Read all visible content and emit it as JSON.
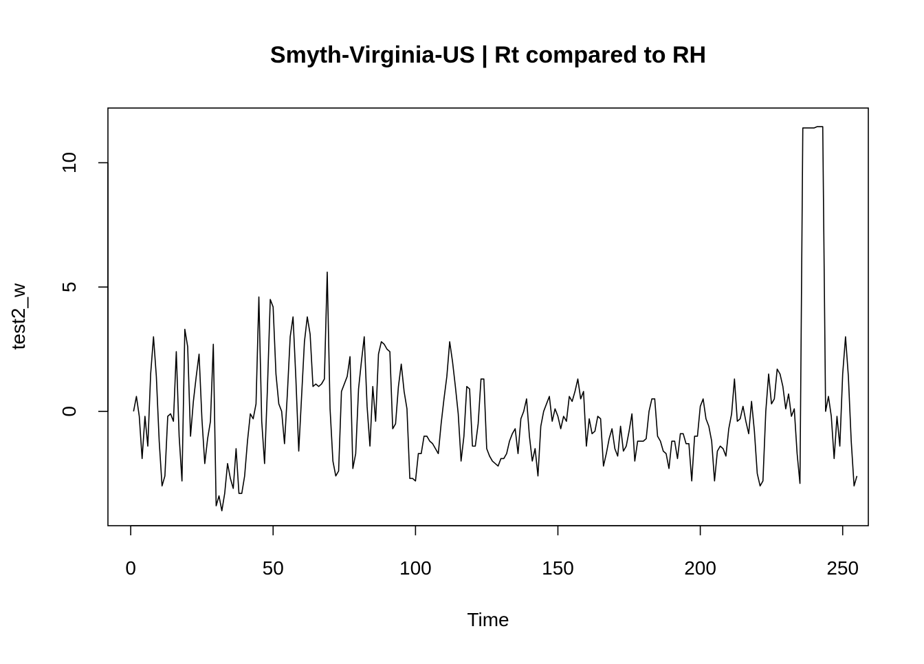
{
  "chart_data": {
    "type": "line",
    "title": "Smyth-Virginia-US | Rt compared to RH",
    "xlabel": "Time",
    "ylabel": "test2_w",
    "xlim": [
      -8,
      259
    ],
    "ylim": [
      -4.6,
      12.2
    ],
    "x_ticks": [
      0,
      50,
      100,
      150,
      200,
      250
    ],
    "y_ticks": [
      0,
      5,
      10
    ],
    "grid": false,
    "legend": "none",
    "line_color": "#000000",
    "series": [
      {
        "x_start": 1,
        "values": [
          0.0,
          0.6,
          -0.2,
          -1.9,
          -0.2,
          -1.4,
          1.5,
          3.0,
          1.4,
          -1.2,
          -3.0,
          -2.6,
          -0.2,
          -0.1,
          -0.4,
          2.4,
          -1.0,
          -2.8,
          3.3,
          2.6,
          -1.0,
          0.4,
          1.4,
          2.3,
          -0.3,
          -2.1,
          -1.1,
          -0.4,
          2.7,
          -3.8,
          -3.4,
          -4.0,
          -3.3,
          -2.1,
          -2.7,
          -3.1,
          -1.5,
          -3.3,
          -3.3,
          -2.6,
          -1.2,
          -0.1,
          -0.3,
          0.3,
          4.6,
          -0.4,
          -2.1,
          0.9,
          4.5,
          4.2,
          1.5,
          0.3,
          0.0,
          -1.3,
          0.7,
          3.0,
          3.8,
          1.3,
          -1.6,
          0.6,
          2.8,
          3.8,
          3.1,
          1.0,
          1.1,
          1.0,
          1.1,
          1.3,
          5.6,
          0.1,
          -2.0,
          -2.6,
          -2.4,
          0.8,
          1.1,
          1.4,
          2.2,
          -2.3,
          -1.7,
          0.9,
          2.0,
          3.0,
          0.2,
          -1.4,
          1.0,
          -0.4,
          2.3,
          2.8,
          2.7,
          2.5,
          2.4,
          -0.7,
          -0.5,
          1.0,
          1.9,
          0.8,
          0.1,
          -2.7,
          -2.7,
          -2.8,
          -1.7,
          -1.7,
          -1.0,
          -1.0,
          -1.2,
          -1.3,
          -1.5,
          -1.7,
          -0.5,
          0.5,
          1.4,
          2.8,
          2.0,
          1.0,
          -0.1,
          -2.0,
          -1.0,
          1.0,
          0.9,
          -1.4,
          -1.4,
          -0.5,
          1.3,
          1.3,
          -1.5,
          -1.8,
          -2.0,
          -2.1,
          -2.2,
          -1.9,
          -1.9,
          -1.7,
          -1.2,
          -0.9,
          -0.7,
          -1.7,
          -0.3,
          0.0,
          0.5,
          -1.0,
          -2.0,
          -1.5,
          -2.6,
          -0.6,
          0.0,
          0.3,
          0.6,
          -0.4,
          0.1,
          -0.2,
          -0.7,
          -0.2,
          -0.4,
          0.6,
          0.4,
          0.8,
          1.3,
          0.5,
          0.8,
          -1.4,
          -0.3,
          -0.9,
          -0.8,
          -0.2,
          -0.3,
          -2.2,
          -1.7,
          -1.1,
          -0.7,
          -1.5,
          -1.8,
          -0.6,
          -1.6,
          -1.4,
          -0.8,
          -0.1,
          -2.0,
          -1.2,
          -1.2,
          -1.2,
          -1.1,
          0.0,
          0.5,
          0.5,
          -1.0,
          -1.2,
          -1.6,
          -1.7,
          -2.3,
          -1.2,
          -1.2,
          -1.9,
          -0.9,
          -0.9,
          -1.3,
          -1.3,
          -2.8,
          -1.0,
          -1.0,
          0.2,
          0.5,
          -0.3,
          -0.6,
          -1.2,
          -2.8,
          -1.6,
          -1.4,
          -1.5,
          -1.8,
          -0.7,
          -0.1,
          1.3,
          -0.4,
          -0.3,
          0.2,
          -0.4,
          -0.9,
          0.4,
          -0.8,
          -2.5,
          -3.0,
          -2.8,
          0.0,
          1.5,
          0.3,
          0.5,
          1.7,
          1.5,
          1.0,
          0.1,
          0.7,
          -0.2,
          0.1,
          -1.7,
          -2.9,
          11.4,
          11.4,
          11.4,
          11.4,
          11.4,
          11.45,
          11.45,
          11.45,
          0.0,
          0.6,
          -0.2,
          -1.9,
          -0.2,
          -1.4,
          1.5,
          3.0,
          1.4,
          -1.2,
          -3.0,
          -2.6
        ]
      }
    ]
  }
}
